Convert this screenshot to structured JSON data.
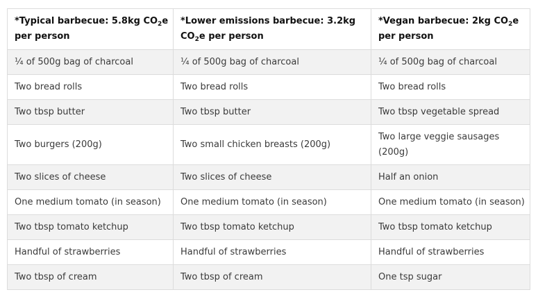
{
  "table": {
    "headers": [
      {
        "pre": "*Typical barbecue: 5.8kg CO",
        "sub": "2",
        "post": "e per person"
      },
      {
        "pre": "*Lower emissions barbecue: 3.2kg CO",
        "sub": "2",
        "post": "e per person"
      },
      {
        "pre": "*Vegan barbecue: 2kg CO",
        "sub": "2",
        "post": "e per person"
      }
    ],
    "rows": [
      [
        "¼ of 500g bag of charcoal",
        "¼ of 500g bag of charcoal",
        "¼ of 500g bag of charcoal"
      ],
      [
        "Two bread rolls",
        "Two bread rolls",
        "Two bread rolls"
      ],
      [
        "Two tbsp butter",
        "Two tbsp butter",
        "Two tbsp vegetable spread"
      ],
      [
        "Two burgers (200g)",
        "Two small chicken breasts (200g)",
        "Two large veggie sausages (200g)"
      ],
      [
        "Two slices of cheese",
        "Two slices of cheese",
        "Half an onion"
      ],
      [
        "One medium tomato (in season)",
        "One medium tomato (in season)",
        "One medium tomato (in season)"
      ],
      [
        "Two tbsp tomato ketchup",
        "Two tbsp tomato ketchup",
        "Two tbsp tomato ketchup"
      ],
      [
        "Handful of strawberries",
        "Handful of strawberries",
        "Handful of strawberries"
      ],
      [
        "Two tbsp of cream",
        "Two tbsp of cream",
        "One tsp sugar"
      ]
    ]
  }
}
